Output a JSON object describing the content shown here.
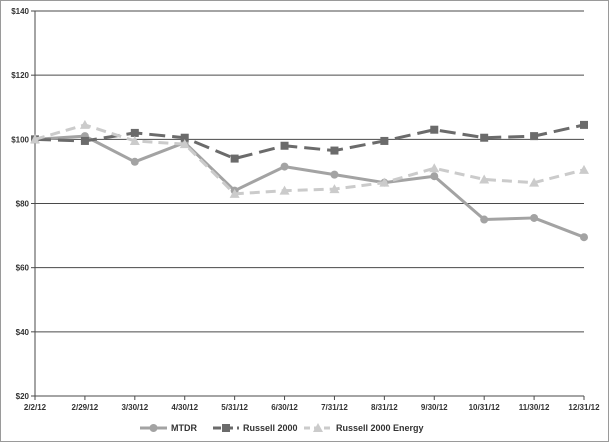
{
  "chart_data": {
    "type": "line",
    "title": "",
    "xlabel": "",
    "ylabel": "",
    "categories": [
      "2/2/12",
      "2/29/12",
      "3/30/12",
      "4/30/12",
      "5/31/12",
      "6/30/12",
      "7/31/12",
      "8/31/12",
      "9/30/12",
      "10/31/12",
      "11/30/12",
      "12/31/12"
    ],
    "y_ticks": [
      "$20",
      "$40",
      "$60",
      "$80",
      "$100",
      "$120",
      "$140"
    ],
    "ylim": [
      20,
      140
    ],
    "grid": "horizontal",
    "legend_position": "bottom",
    "series": [
      {
        "name": "MTDR",
        "values": [
          100,
          101,
          93,
          99,
          84,
          91.5,
          89,
          86.5,
          88.5,
          75,
          75.5,
          69.5
        ],
        "color": "#a3a3a3",
        "line_style": "solid",
        "marker": "circle"
      },
      {
        "name": "Russell 2000",
        "values": [
          100,
          99.5,
          102,
          100.5,
          94,
          98,
          96.5,
          99.5,
          103,
          100.5,
          101,
          104.5
        ],
        "color": "#6b6b6b",
        "line_style": "dashed",
        "marker": "square"
      },
      {
        "name": "Russell 2000 Energy",
        "values": [
          100,
          104.5,
          99.5,
          98.5,
          83,
          84,
          84.5,
          86.5,
          91,
          87.5,
          86.5,
          90.5
        ],
        "color": "#cbcbcb",
        "line_style": "dashed",
        "marker": "triangle"
      }
    ]
  }
}
